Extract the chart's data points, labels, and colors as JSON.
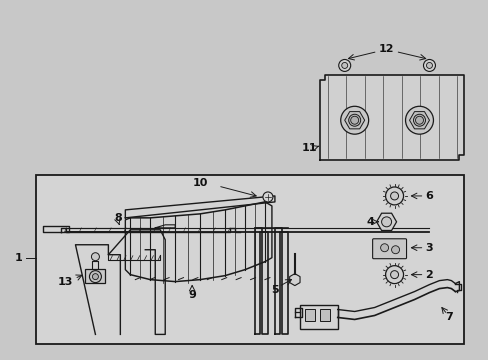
{
  "background_color": "#d8d8d8",
  "box_bg": "#d4d4d4",
  "line_color": "#1a1a1a",
  "text_color": "#111111",
  "fig_width": 4.89,
  "fig_height": 3.6,
  "dpi": 100
}
